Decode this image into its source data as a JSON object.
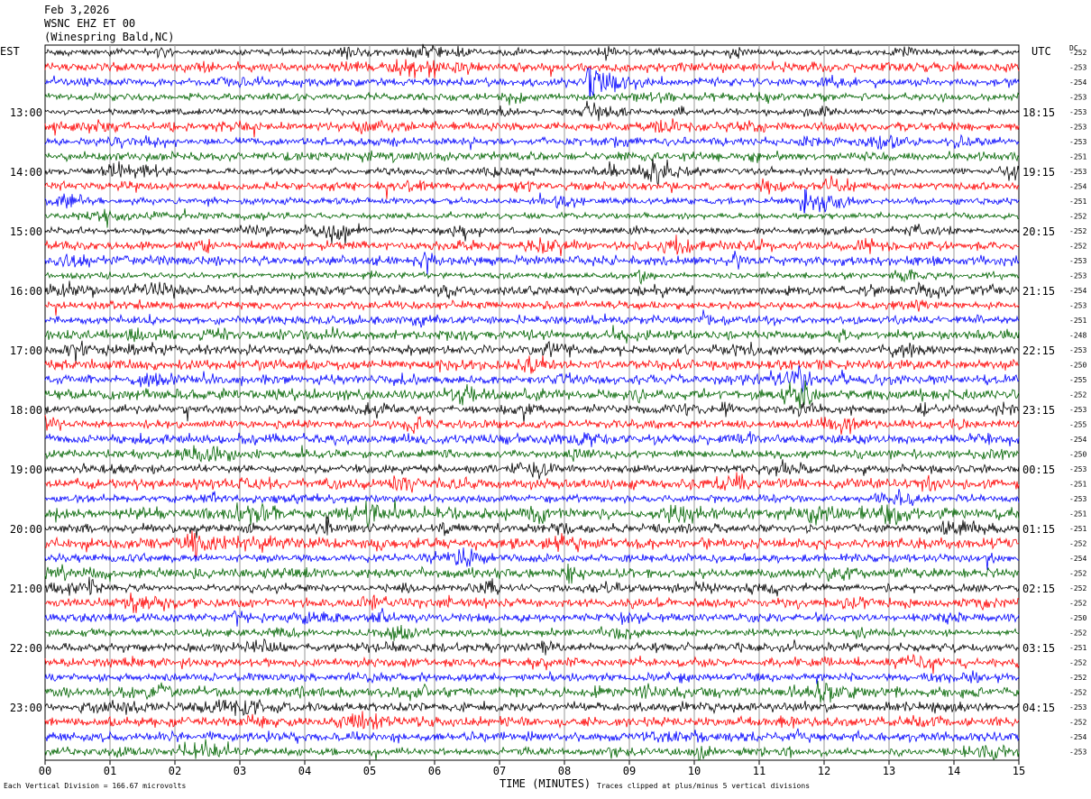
{
  "header": {
    "date": "Feb 3,2026",
    "station": "WSNC EHZ ET 00",
    "location": "(Winespring Bald,NC)"
  },
  "left_timezone": "EST",
  "right_timezone": "UTC",
  "dc_label": "DC",
  "footer": {
    "xlabel": "TIME (MINUTES)",
    "scale_note": "Each Vertical Division = 166.67 microvolts",
    "clip_note": "Traces clipped at plus/minus 5 vertical divisions"
  },
  "chart_data": {
    "type": "line",
    "plot": "helicorder",
    "xlabel": "TIME (MINUTES)",
    "xlim": [
      0,
      15
    ],
    "x_ticks": [
      "00",
      "01",
      "02",
      "03",
      "04",
      "05",
      "06",
      "07",
      "08",
      "09",
      "10",
      "11",
      "12",
      "13",
      "14",
      "15"
    ],
    "minutes_per_line": 15,
    "line_colors": [
      "#000000",
      "#ff0000",
      "#0000ff",
      "#006400"
    ],
    "left_hour_labels": [
      "13:00",
      "14:00",
      "15:00",
      "16:00",
      "17:00",
      "18:00",
      "19:00",
      "20:00",
      "21:00",
      "22:00",
      "23:00"
    ],
    "right_hour_labels": [
      "18:15",
      "19:15",
      "20:15",
      "21:15",
      "22:15",
      "23:15",
      "00:15",
      "01:15",
      "02:15",
      "03:15",
      "04:15"
    ],
    "dc_offsets": [
      -252,
      -253,
      -254,
      -253,
      -253,
      -253,
      -253,
      -251,
      -253,
      -254,
      -251,
      -252,
      -252,
      -252,
      -253,
      -253,
      -254,
      -253,
      -251,
      -248,
      -253,
      -250,
      -255,
      -252,
      -253,
      -255,
      -254,
      -250,
      -253,
      -251,
      -253,
      -251,
      -251,
      -252,
      -254,
      -252,
      -252,
      -252,
      -250,
      -252,
      -251,
      -252,
      -252,
      -252,
      -253,
      -252,
      -254,
      -253
    ],
    "events": [
      {
        "line": 2,
        "minute": 8.35,
        "peak_divisions": 5,
        "coda_minutes": 1.2
      },
      {
        "line": 10,
        "minute": 11.65,
        "peak_divisions": 4,
        "coda_minutes": 0.9
      }
    ]
  }
}
